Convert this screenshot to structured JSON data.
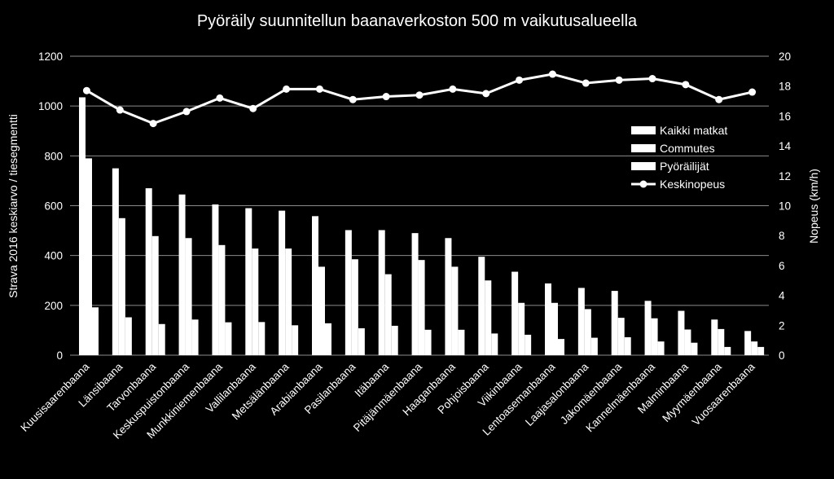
{
  "chart_data": {
    "type": "bar",
    "title": "Pyöräily suunnitellun baanaverkoston 500 m vaikutusalueella",
    "ylabel": "Strava 2016 keskiarvo / tiesegmentti",
    "y2label": "Nopeus (km/h)",
    "ylim": [
      0,
      1200
    ],
    "y2lim": [
      0,
      20
    ],
    "yticks": [
      "0",
      "200",
      "400",
      "600",
      "800",
      "1000",
      "1200"
    ],
    "y2ticks": [
      "0",
      "2",
      "4",
      "6",
      "8",
      "10",
      "12",
      "14",
      "16",
      "18",
      "20"
    ],
    "grid": true,
    "legend_position": "right",
    "categories": [
      "Kuusisaarenbaana",
      "Länsibaana",
      "Tarvonbaana",
      "Keskuspuistonbaana",
      "Munkkiniemenbaana",
      "Vallilanbaana",
      "Metsälänbaana",
      "Arabianbaana",
      "Pasilanbaana",
      "Itäbaana",
      "Pitäjänmäenbaana",
      "Haaganbaana",
      "Pohjoisbaana",
      "Viikinbaana",
      "Lentoasemanbaana",
      "Laajasalonbaana",
      "Jakomäenbaana",
      "Kannelmäenbaana",
      "Malminbaana",
      "Myymäenbaana",
      "Vuosaarenbaana"
    ],
    "series": [
      {
        "name": "Kaikki matkat",
        "axis": "left",
        "kind": "bar",
        "color": "#ffffff",
        "values": [
          1035,
          750,
          670,
          645,
          605,
          590,
          580,
          558,
          502,
          502,
          490,
          470,
          395,
          335,
          288,
          270,
          258,
          218,
          178,
          143,
          97
        ]
      },
      {
        "name": "Commutes",
        "axis": "left",
        "kind": "bar",
        "color": "#ffffff",
        "values": [
          790,
          550,
          478,
          470,
          442,
          428,
          428,
          355,
          385,
          325,
          382,
          355,
          300,
          210,
          210,
          185,
          150,
          148,
          103,
          105,
          55
        ]
      },
      {
        "name": "Pyöräilijät",
        "axis": "left",
        "kind": "bar",
        "color": "#ffffff",
        "values": [
          192,
          152,
          125,
          143,
          132,
          133,
          120,
          128,
          108,
          118,
          102,
          102,
          87,
          82,
          65,
          70,
          72,
          55,
          50,
          33,
          33
        ]
      },
      {
        "name": "Keskinopeus",
        "axis": "right",
        "kind": "line",
        "color": "#ffffff",
        "values": [
          17.7,
          16.4,
          15.5,
          16.3,
          17.2,
          16.5,
          17.8,
          17.8,
          17.1,
          17.3,
          17.4,
          17.8,
          17.5,
          18.4,
          18.8,
          18.2,
          18.4,
          18.5,
          18.1,
          17.1,
          17.6
        ]
      }
    ]
  }
}
